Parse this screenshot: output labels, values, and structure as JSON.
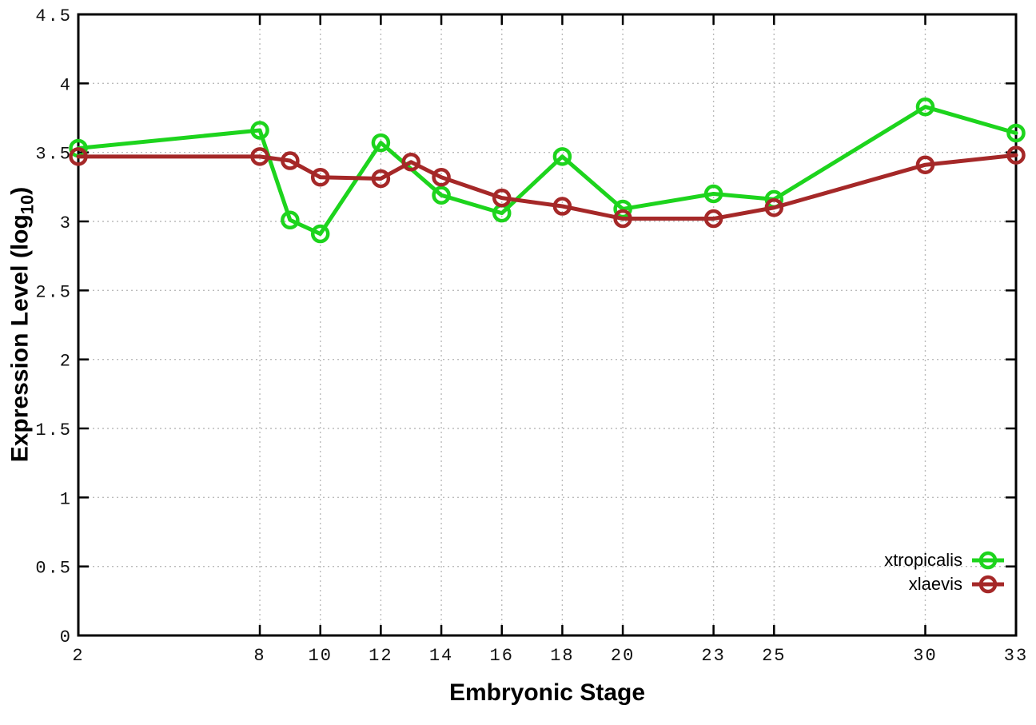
{
  "chart_data": {
    "type": "line",
    "title": "",
    "xlabel": "Embryonic Stage",
    "ylabel": {
      "prefix": "Expression Level (log",
      "sub": "10",
      "suffix": ")"
    },
    "xlim": [
      2,
      33
    ],
    "ylim": [
      0,
      4.5
    ],
    "grid": true,
    "legend_position": "inside-bottom-right",
    "xticks": [
      2,
      8,
      10,
      12,
      14,
      16,
      18,
      20,
      23,
      25,
      30,
      33
    ],
    "yticks": [
      0,
      0.5,
      1,
      1.5,
      2,
      2.5,
      3,
      3.5,
      4,
      4.5
    ],
    "axis_color": "#000000",
    "grid_color": "#bbbbbb",
    "background": "#ffffff",
    "series": [
      {
        "name": "xtropicalis",
        "color": "#1dd41d",
        "marker": "open-circle",
        "x": [
          2,
          8,
          9,
          10,
          12,
          14,
          16,
          18,
          20,
          23,
          25,
          30,
          33
        ],
        "y": [
          3.53,
          3.66,
          3.01,
          2.91,
          3.57,
          3.19,
          3.06,
          3.47,
          3.09,
          3.2,
          3.16,
          3.83,
          3.64
        ]
      },
      {
        "name": "xlaevis",
        "color": "#a52828",
        "marker": "open-circle",
        "x": [
          2,
          8,
          9,
          10,
          12,
          13,
          14,
          16,
          18,
          20,
          23,
          25,
          30,
          33
        ],
        "y": [
          3.47,
          3.47,
          3.44,
          3.32,
          3.31,
          3.43,
          3.32,
          3.17,
          3.11,
          3.02,
          3.02,
          3.1,
          3.41,
          3.48
        ]
      }
    ]
  }
}
